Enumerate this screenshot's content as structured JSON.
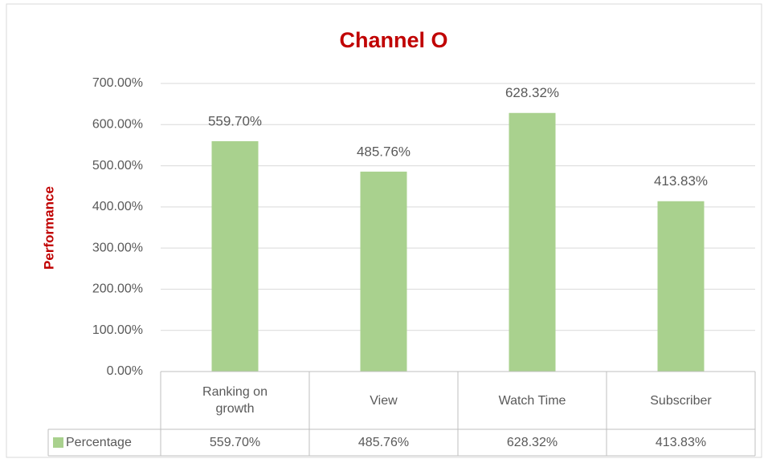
{
  "chart_data": {
    "type": "bar",
    "title": "Channel O",
    "y_label": "Performance",
    "categories": [
      "Ranking on growth",
      "View",
      "Watch Time",
      "Subscriber"
    ],
    "series": [
      {
        "name": "Percentage",
        "color": "#a9d18e",
        "values": [
          559.7,
          485.76,
          628.32,
          413.83
        ],
        "value_labels": [
          "559.70%",
          "485.76%",
          "628.32%",
          "413.83%"
        ]
      }
    ],
    "ylim": [
      0,
      700
    ],
    "yticks": [
      {
        "value": 0,
        "label": "0.00%"
      },
      {
        "value": 100,
        "label": "100.00%"
      },
      {
        "value": 200,
        "label": "200.00%"
      },
      {
        "value": 300,
        "label": "300.00%"
      },
      {
        "value": 400,
        "label": "400.00%"
      },
      {
        "value": 500,
        "label": "500.00%"
      },
      {
        "value": 600,
        "label": "600.00%"
      },
      {
        "value": 700,
        "label": "700.00%"
      }
    ],
    "grid": true,
    "data_table": true
  }
}
